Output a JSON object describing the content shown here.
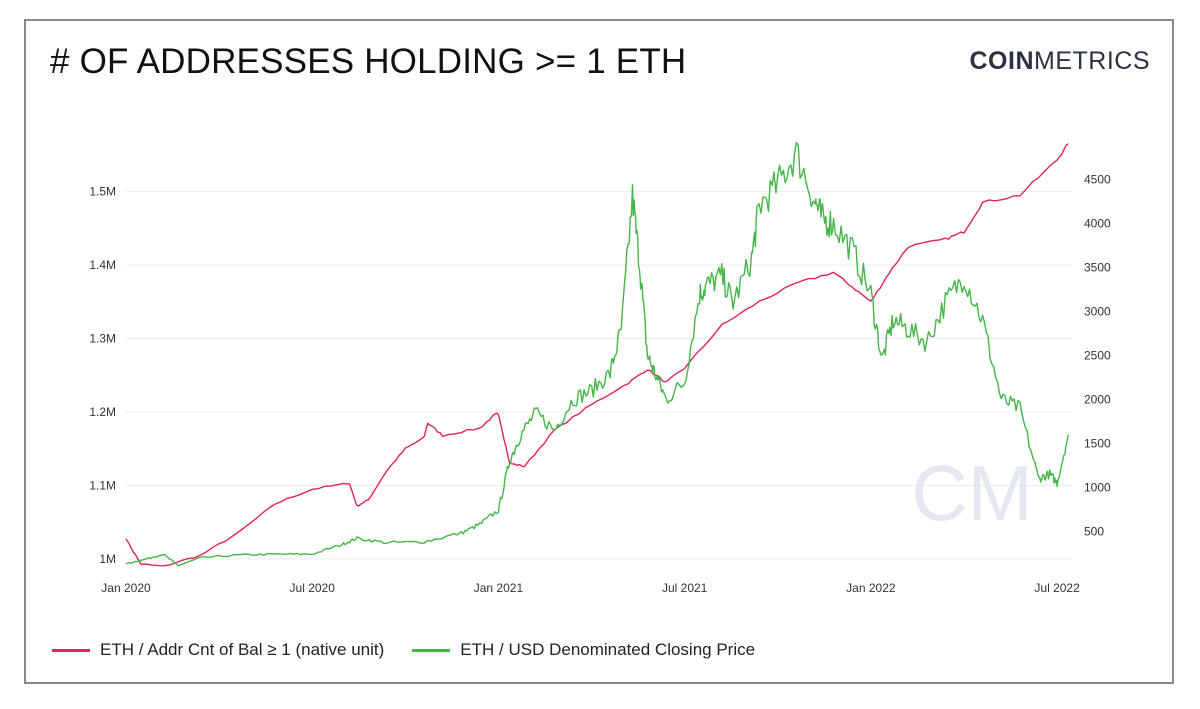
{
  "header": {
    "title": "# OF ADDRESSES HOLDING >= 1 ETH",
    "logo_bold": "COIN",
    "logo_light": "METRICS"
  },
  "watermark": "CM",
  "colors": {
    "red": "#e0245e",
    "green": "#45b649",
    "grid": "#ececec",
    "watermark": "#e4e8f3"
  },
  "chart_data": {
    "type": "line",
    "title": "# OF ADDRESSES HOLDING >= 1 ETH",
    "x_ticks": [
      "Jan 2020",
      "Jul 2020",
      "Jan 2021",
      "Jul 2021",
      "Jan 2022",
      "Jul 2022"
    ],
    "x_range": [
      2020.0,
      2022.54
    ],
    "y_left": {
      "ticks": [
        "1M",
        "1.1M",
        "1.2M",
        "1.3M",
        "1.4M",
        "1.5M"
      ],
      "tick_values": [
        1000000,
        1100000,
        1200000,
        1300000,
        1400000,
        1500000
      ],
      "range": [
        985000,
        1570000
      ]
    },
    "y_right": {
      "ticks": [
        "500",
        "1000",
        "1500",
        "2000",
        "2500",
        "3000",
        "3500",
        "4000",
        "4500"
      ],
      "tick_values": [
        500,
        1000,
        1500,
        2000,
        2500,
        3000,
        3500,
        4000,
        4500
      ],
      "range": [
        60,
        4950
      ]
    },
    "series": [
      {
        "name": "ETH / Addr Cnt of Bal ≥ 1 (native unit)",
        "axis": "left",
        "color": "#e0245e",
        "x": [
          2020.0,
          2020.04,
          2020.1,
          2020.2,
          2020.3,
          2020.4,
          2020.5,
          2020.6,
          2020.62,
          2020.65,
          2020.7,
          2020.75,
          2020.8,
          2020.81,
          2020.85,
          2020.95,
          2020.99,
          2021.0,
          2021.03,
          2021.07,
          2021.15,
          2021.25,
          2021.35,
          2021.4,
          2021.45,
          2021.5,
          2021.6,
          2021.7,
          2021.8,
          2021.9,
          2021.95,
          2022.0,
          2022.05,
          2022.1,
          2022.2,
          2022.25,
          2022.3,
          2022.4,
          2022.5,
          2022.53
        ],
        "values": [
          1027000,
          993000,
          990000,
          1005000,
          1035000,
          1075000,
          1095000,
          1103000,
          1072000,
          1080000,
          1120000,
          1150000,
          1165000,
          1185000,
          1168000,
          1178000,
          1196000,
          1198000,
          1130000,
          1126000,
          1175000,
          1210000,
          1240000,
          1258000,
          1240000,
          1260000,
          1318000,
          1350000,
          1375000,
          1390000,
          1370000,
          1350000,
          1390000,
          1425000,
          1435000,
          1445000,
          1485000,
          1495000,
          1543000,
          1565000
        ]
      },
      {
        "name": "ETH / USD Denominated Closing Price",
        "axis": "right",
        "color": "#45b649",
        "x": [
          2020.0,
          2020.05,
          2020.1,
          2020.14,
          2020.2,
          2020.3,
          2020.4,
          2020.5,
          2020.58,
          2020.62,
          2020.7,
          2020.8,
          2020.9,
          2020.95,
          2021.0,
          2021.03,
          2021.06,
          2021.1,
          2021.15,
          2021.2,
          2021.25,
          2021.3,
          2021.33,
          2021.36,
          2021.38,
          2021.4,
          2021.42,
          2021.45,
          2021.5,
          2021.54,
          2021.56,
          2021.6,
          2021.63,
          2021.68,
          2021.7,
          2021.75,
          2021.8,
          2021.85,
          2021.87,
          2021.9,
          2021.95,
          2022.0,
          2022.03,
          2022.06,
          2022.1,
          2022.15,
          2022.2,
          2022.25,
          2022.3,
          2022.35,
          2022.4,
          2022.45,
          2022.48,
          2022.5,
          2022.53
        ],
        "values": [
          130,
          180,
          240,
          110,
          200,
          230,
          240,
          240,
          350,
          420,
          370,
          380,
          480,
          580,
          740,
          1300,
          1600,
          1850,
          1650,
          2000,
          2100,
          2300,
          2800,
          4300,
          3500,
          2500,
          2300,
          2000,
          2200,
          3200,
          3300,
          3400,
          3100,
          3600,
          4200,
          4450,
          4800,
          4250,
          4050,
          4000,
          3700,
          3200,
          2450,
          2900,
          2800,
          2650,
          3100,
          3400,
          2900,
          2000,
          1900,
          1100,
          1150,
          1050,
          1600
        ]
      }
    ]
  },
  "legend": [
    {
      "label": "ETH / Addr Cnt of Bal ≥ 1 (native unit)"
    },
    {
      "label": "ETH / USD Denominated Closing Price"
    }
  ]
}
